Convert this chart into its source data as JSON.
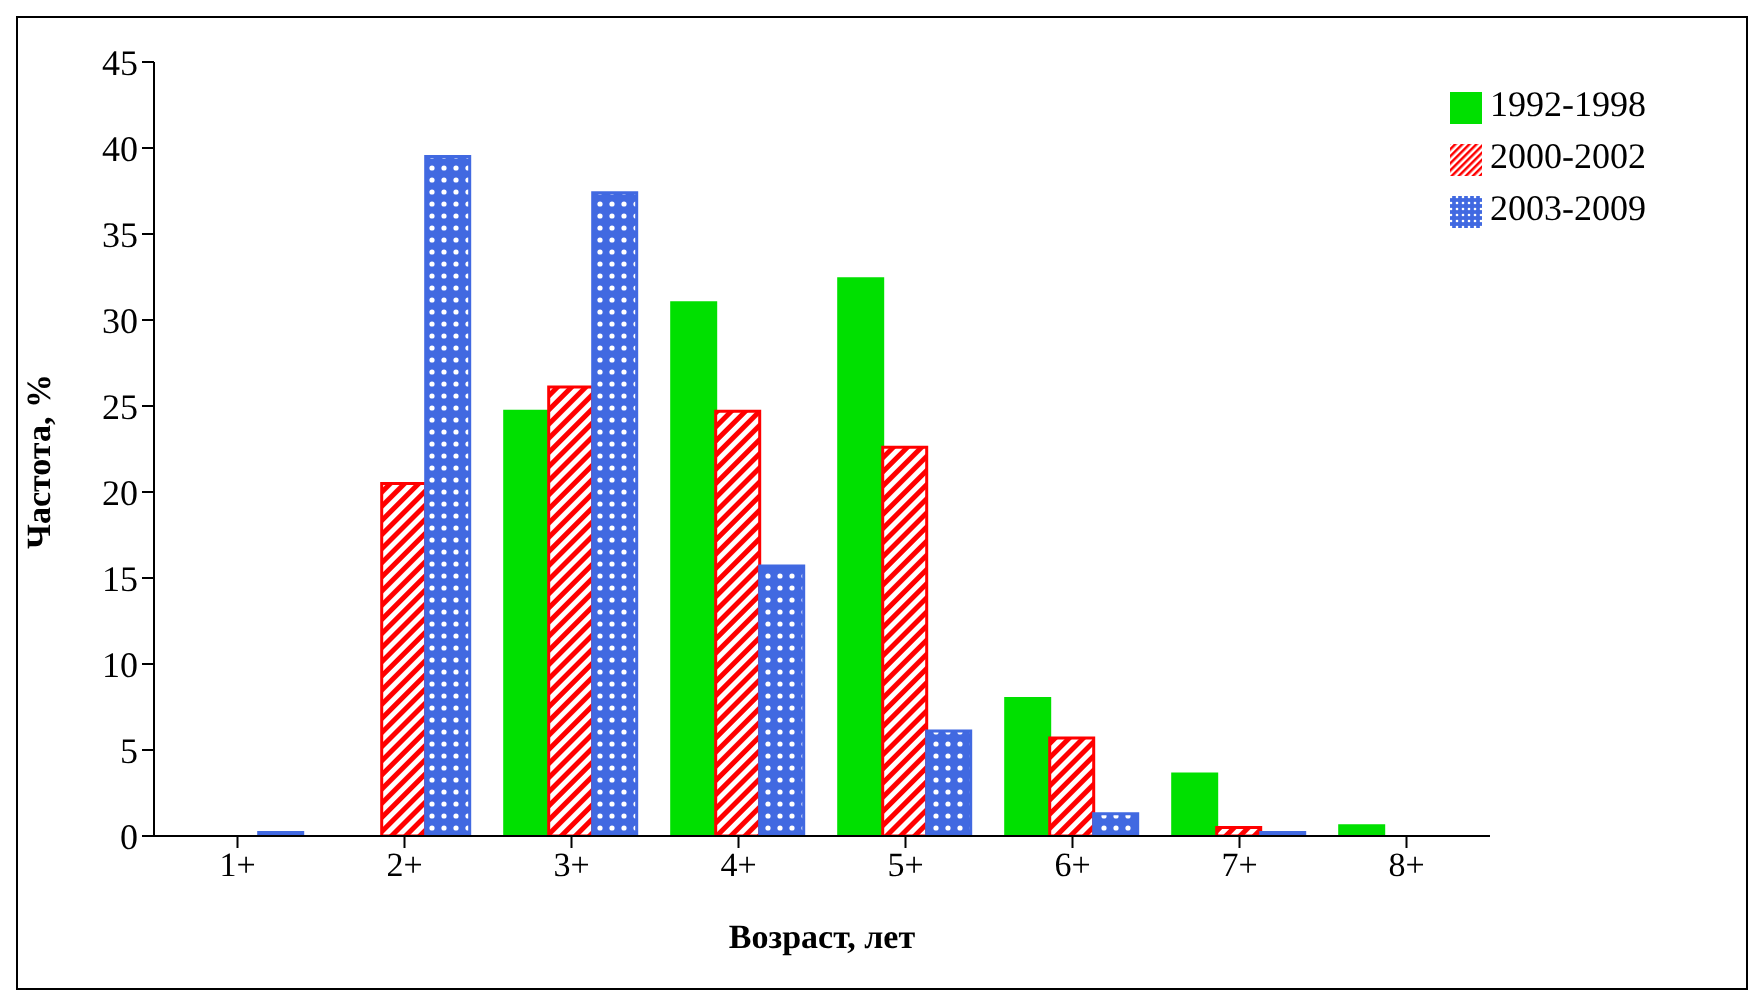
{
  "chart_data": {
    "type": "bar",
    "xlabel": "Возраст, лет",
    "ylabel": "Частота, %",
    "categories": [
      "1+",
      "2+",
      "3+",
      "4+",
      "5+",
      "6+",
      "7+",
      "8+"
    ],
    "series": [
      {
        "name": "1992-1998",
        "color": "#00e000",
        "values": [
          0,
          0,
          24.7,
          31.0,
          32.4,
          8.0,
          3.6,
          0.6
        ]
      },
      {
        "name": "2000-2002",
        "color": "#ff0000",
        "values": [
          0,
          20.5,
          26.1,
          24.7,
          22.6,
          5.7,
          0.5,
          0
        ]
      },
      {
        "name": "2003-2009",
        "color": "#4169e1",
        "values": [
          0.2,
          39.5,
          37.4,
          15.7,
          6.1,
          1.3,
          0.2,
          0
        ]
      }
    ],
    "ylim": [
      0,
      45
    ],
    "yticks": [
      0,
      5,
      10,
      15,
      20,
      25,
      30,
      35,
      40,
      45
    ],
    "grid": false,
    "legend": "top right"
  }
}
